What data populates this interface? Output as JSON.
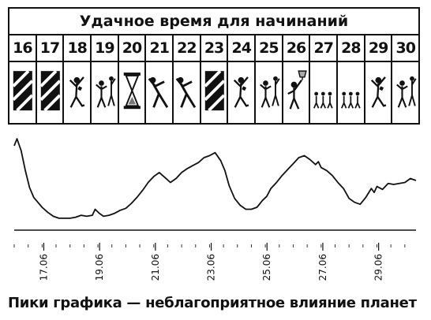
{
  "calendar": {
    "title": "Удачное время для начинаний",
    "days": [
      {
        "label": "16",
        "icon": "hatched-block-icon"
      },
      {
        "label": "17",
        "icon": "hatched-block-icon"
      },
      {
        "label": "18",
        "icon": "dancing-figure-icon"
      },
      {
        "label": "19",
        "icon": "dancing-pair-icon"
      },
      {
        "label": "20",
        "icon": "hourglass-icon"
      },
      {
        "label": "21",
        "icon": "stretching-figure-icon"
      },
      {
        "label": "22",
        "icon": "stretching-figure-icon"
      },
      {
        "label": "23",
        "icon": "hatched-block-icon"
      },
      {
        "label": "24",
        "icon": "dancing-figure-icon"
      },
      {
        "label": "25",
        "icon": "dancing-pair-icon"
      },
      {
        "label": "26",
        "icon": "figure-with-trophy-icon"
      },
      {
        "label": "27",
        "icon": "marching-figures-icon"
      },
      {
        "label": "28",
        "icon": "marching-figures-icon"
      },
      {
        "label": "29",
        "icon": "dancing-figure-icon"
      },
      {
        "label": "30",
        "icon": "dancing-pair-icon"
      }
    ]
  },
  "chart_data": {
    "type": "line",
    "title": "",
    "xlabel": "",
    "ylabel": "",
    "x_ticks": [
      "17.06",
      "19.06",
      "21.06",
      "23.06",
      "25.06",
      "27.06",
      "29.06"
    ],
    "xlim": [
      16.0,
      30.4
    ],
    "ylim": [
      0,
      100
    ],
    "grid": false,
    "series": [
      {
        "x": [
          16.0,
          16.1,
          16.25,
          16.4,
          16.55,
          16.7,
          16.85,
          17.0,
          17.2,
          17.4,
          17.6,
          17.8,
          18.0,
          18.2,
          18.4,
          18.6,
          18.8,
          18.9,
          19.05,
          19.2,
          19.4,
          19.6,
          19.8,
          20.0,
          20.2,
          20.4,
          20.6,
          20.8,
          21.0,
          21.2,
          21.4,
          21.6,
          21.8,
          22.0,
          22.2,
          22.4,
          22.6,
          22.8,
          23.0,
          23.2,
          23.4,
          23.55,
          23.7,
          23.9,
          24.1,
          24.3,
          24.5,
          24.7,
          24.9,
          25.05,
          25.2,
          25.4,
          25.6,
          25.8,
          26.0,
          26.2,
          26.4,
          26.6,
          26.8,
          26.9,
          27.0,
          27.2,
          27.4,
          27.6,
          27.8,
          28.0,
          28.2,
          28.4,
          28.6,
          28.8,
          28.9,
          29.0,
          29.2,
          29.4,
          29.6,
          29.8,
          30.0,
          30.2,
          30.4
        ],
        "y": [
          85,
          92,
          80,
          60,
          43,
          33,
          28,
          23,
          18,
          14,
          12,
          12,
          12,
          13,
          15,
          14,
          15,
          21,
          17,
          14,
          15,
          17,
          20,
          22,
          27,
          33,
          40,
          48,
          54,
          58,
          53,
          48,
          52,
          58,
          62,
          65,
          68,
          73,
          75,
          78,
          70,
          60,
          45,
          32,
          25,
          21,
          21,
          23,
          30,
          34,
          42,
          48,
          55,
          61,
          67,
          73,
          75,
          71,
          66,
          69,
          63,
          60,
          55,
          48,
          42,
          32,
          28,
          26,
          33,
          42,
          38,
          44,
          41,
          47,
          46,
          47,
          48,
          52,
          50
        ]
      }
    ]
  },
  "caption": "Пики графика — неблагоприятное влияние планет"
}
